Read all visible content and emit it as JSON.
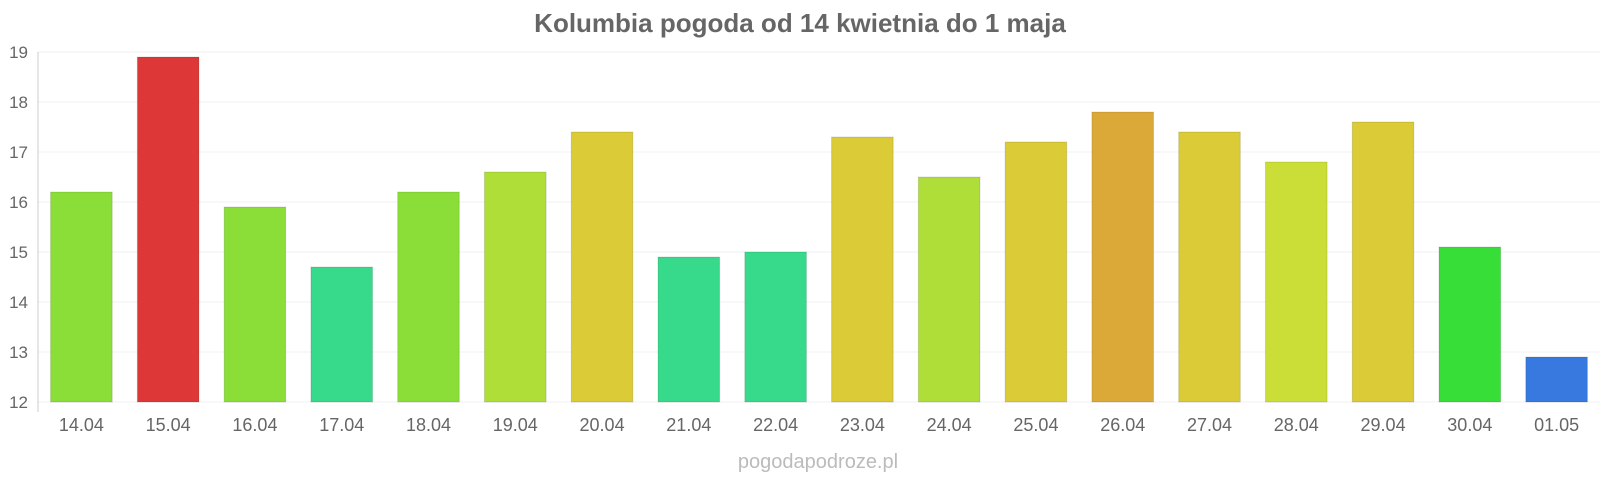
{
  "footer": {
    "site": "pogodapodroze.pl"
  },
  "chart_data": {
    "type": "bar",
    "title": "Kolumbia pogoda od 14 kwietnia do 1 maja",
    "xlabel": "",
    "ylabel": "",
    "ylim": [
      12,
      19
    ],
    "yticks": [
      12,
      13,
      14,
      15,
      16,
      17,
      18,
      19
    ],
    "grid": true,
    "categories": [
      "14.04",
      "15.04",
      "16.04",
      "17.04",
      "18.04",
      "19.04",
      "20.04",
      "21.04",
      "22.04",
      "23.04",
      "24.04",
      "25.04",
      "26.04",
      "27.04",
      "28.04",
      "29.04",
      "30.04",
      "01.05"
    ],
    "values": [
      16.2,
      18.9,
      15.9,
      14.7,
      16.2,
      16.6,
      17.4,
      14.9,
      15.0,
      17.3,
      16.5,
      17.2,
      17.8,
      17.4,
      16.8,
      17.6,
      15.1,
      12.9
    ],
    "colors": [
      "#8ade37",
      "#de3737",
      "#8ade37",
      "#37da8a",
      "#8ade37",
      "#aede37",
      "#dacb37",
      "#37da8a",
      "#37da8a",
      "#dacb37",
      "#aede37",
      "#dacb37",
      "#dba937",
      "#dacb37",
      "#cbde37",
      "#dacb37",
      "#37de37",
      "#3779de"
    ]
  }
}
